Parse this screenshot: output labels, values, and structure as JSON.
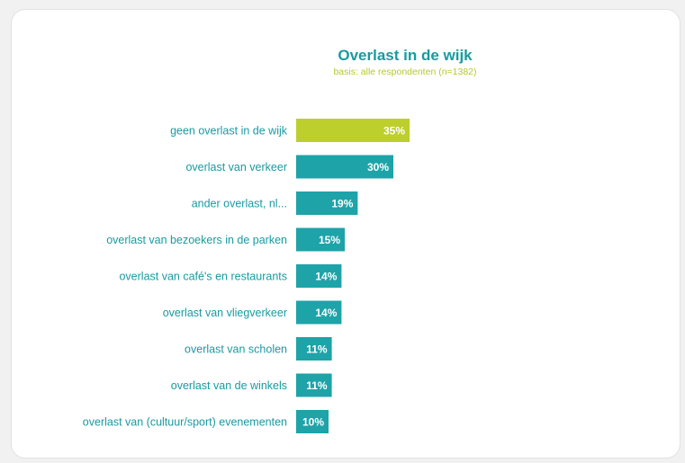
{
  "chart_data": {
    "type": "bar",
    "orientation": "horizontal",
    "title": "Overlast in de wijk",
    "subtitle": "basis: alle respondenten (n=1382)",
    "categories": [
      "geen overlast in de wijk",
      "overlast van verkeer",
      "ander overlast, nl...",
      "overlast van bezoekers in de parken",
      "overlast van café's en restaurants",
      "overlast van vliegverkeer",
      "overlast van scholen",
      "overlast van de winkels",
      "overlast van (cultuur/sport) evenementen"
    ],
    "values": [
      35,
      30,
      19,
      15,
      14,
      14,
      11,
      11,
      10
    ],
    "value_labels": [
      "35%",
      "30%",
      "19%",
      "15%",
      "14%",
      "14%",
      "11%",
      "11%",
      "10%"
    ],
    "unit": "%",
    "highlight_index": 0
  },
  "colors": {
    "title": "#1a9aa0",
    "subtitle": "#b7c928",
    "highlight_bar": "#bccf2c",
    "bar": "#1ea3a8",
    "label": "#1a9aa0"
  }
}
